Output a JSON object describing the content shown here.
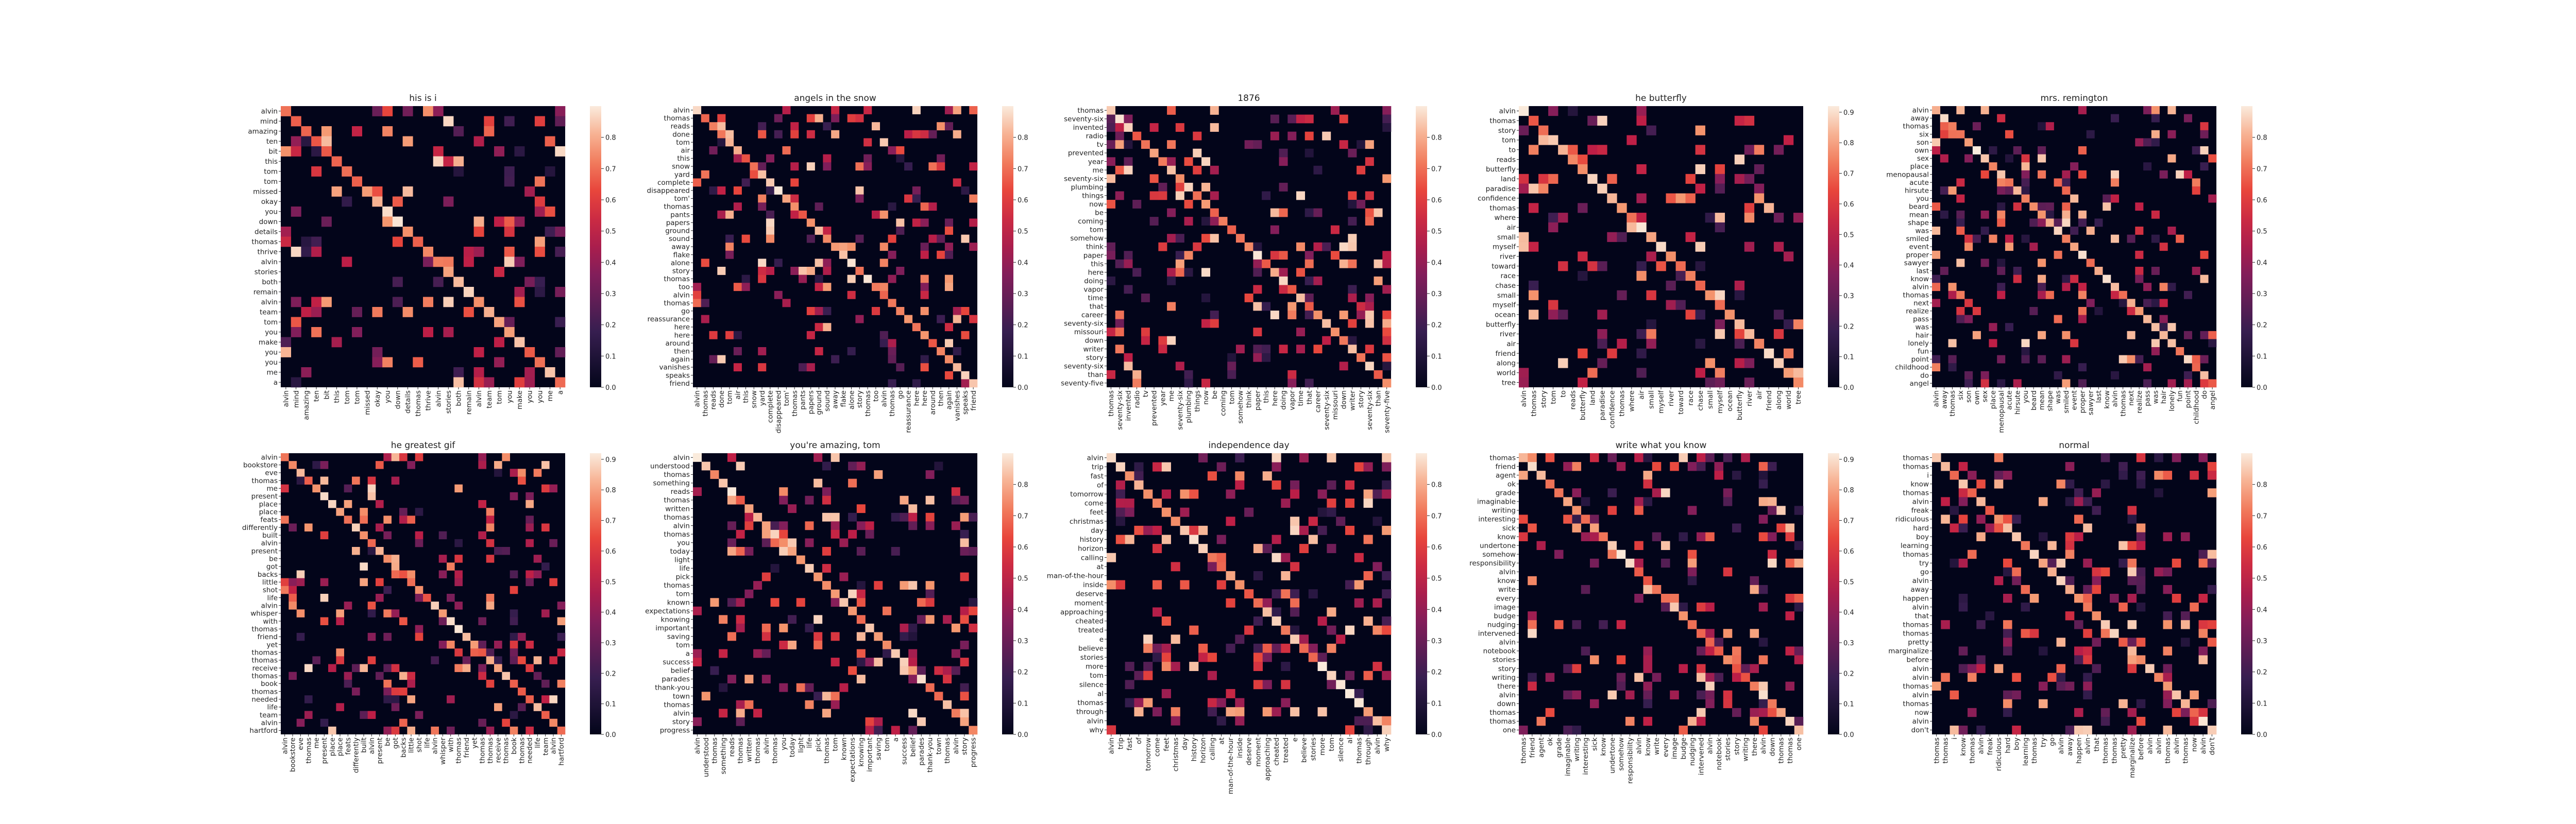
{
  "chart_data": [
    {
      "type": "heatmap",
      "title": "his is i",
      "labels": [
        "alvin",
        "mind",
        "amazing",
        "ten",
        "bit",
        "this",
        "tom",
        "tom",
        "missed",
        "okay",
        "you",
        "down",
        "details",
        "thomas",
        "thrive",
        "alvin",
        "stories",
        "both",
        "remain",
        "alvin",
        "team",
        "tom",
        "you",
        "make",
        "you",
        "you",
        "me",
        "a"
      ],
      "colorbar_ticks": [
        0.0,
        0.1,
        0.2,
        0.3,
        0.4,
        0.5,
        0.6,
        0.7,
        0.8
      ],
      "vmax": 0.9
    },
    {
      "type": "heatmap",
      "title": "angels in the snow",
      "labels": [
        "alvin",
        "thomas",
        "reads",
        "done",
        "tom",
        "air",
        "this",
        "snow",
        "yard",
        "complete",
        "disappeared",
        "tom'",
        "thomas",
        "pants",
        "papers",
        "ground",
        "sound",
        "away",
        "flake",
        "alone",
        "story",
        "thomas",
        "too",
        "alvin",
        "thomas",
        "go",
        "reassurance",
        "here",
        "here",
        "around",
        "then",
        "again",
        "vanishes",
        "speaks",
        "friend"
      ],
      "colorbar_ticks": [
        0.0,
        0.1,
        0.2,
        0.3,
        0.4,
        0.5,
        0.6,
        0.7,
        0.8
      ],
      "vmax": 0.9
    },
    {
      "type": "heatmap",
      "title": "1876",
      "labels": [
        "thomas",
        "seventy-six",
        "invented",
        "radio",
        "tv",
        "prevented",
        "year",
        "me",
        "seventy-six",
        "plumbing",
        "things",
        "now",
        "be",
        "coming",
        "tom",
        "somehow",
        "think",
        "paper",
        "this",
        "here",
        "doing",
        "vapor",
        "time",
        "that",
        "career",
        "seventy-six",
        "missouri",
        "down",
        "writer",
        "story",
        "seventy-six",
        "than",
        "seventy-five"
      ],
      "colorbar_ticks": [
        0.0,
        0.1,
        0.2,
        0.3,
        0.4,
        0.5,
        0.6,
        0.7,
        0.8
      ],
      "vmax": 0.9
    },
    {
      "type": "heatmap",
      "title": "he butterfly",
      "labels": [
        "alvin",
        "thomas",
        "story",
        "tom",
        "to",
        "reads",
        "butterfly",
        "land",
        "paradise",
        "confidence",
        "thomas",
        "where",
        "air",
        "small",
        "myself",
        "river",
        "toward",
        "race",
        "chase",
        "small",
        "myself",
        "ocean",
        "butterfly",
        "river",
        "air",
        "friend",
        "along",
        "world",
        "tree"
      ],
      "colorbar_ticks": [
        0.0,
        0.1,
        0.2,
        0.3,
        0.4,
        0.5,
        0.6,
        0.7,
        0.8,
        0.9
      ],
      "vmax": 0.92
    },
    {
      "type": "heatmap",
      "title": "mrs. remington",
      "labels": [
        "alvin",
        "away",
        "thomas",
        "six",
        "son",
        "own",
        "sex",
        "place",
        "menopausal",
        "acute",
        "hirsute",
        "you",
        "beard",
        "mean",
        "shape",
        "was",
        "smiled",
        "event",
        "proper",
        "sawyer",
        "last",
        "know",
        "alvin",
        "thomas",
        "next",
        "realize",
        "pass",
        "was",
        "hair",
        "lonely",
        "fun",
        "point",
        "childhood",
        "do",
        "angel"
      ],
      "colorbar_ticks": [
        0.0,
        0.1,
        0.2,
        0.3,
        0.4,
        0.5,
        0.6,
        0.7,
        0.8
      ],
      "vmax": 0.9
    },
    {
      "type": "heatmap",
      "title": "he greatest gif",
      "labels": [
        "alvin",
        "bookstore",
        "eve",
        "thomas",
        "me",
        "present",
        "place",
        "place",
        "feats",
        "differently",
        "built",
        "alvin",
        "present",
        "be",
        "got",
        "backs",
        "little",
        "shot",
        "life",
        "alvin",
        "whisper",
        "with",
        "thomas",
        "friend",
        "yet",
        "thomas",
        "thomas",
        "receive",
        "thomas",
        "book",
        "thomas",
        "needed",
        "life",
        "team",
        "alvin",
        "hartford"
      ],
      "colorbar_ticks": [
        0.0,
        0.1,
        0.2,
        0.3,
        0.4,
        0.5,
        0.6,
        0.7,
        0.8,
        0.9
      ],
      "vmax": 0.92
    },
    {
      "type": "heatmap",
      "title": "you're amazing, tom",
      "labels": [
        "alvin",
        "understood",
        "thomas",
        "something",
        "reads",
        "thomas",
        "written",
        "thomas",
        "alvin",
        "thomas",
        "you",
        "today",
        "light",
        "life",
        "pick",
        "thomas",
        "tom",
        "known",
        "expectations",
        "knowing",
        "important",
        "saving",
        "tom",
        "a",
        "success",
        "belief",
        "parades",
        "thank-you",
        "town",
        "thomas",
        "alvin",
        "story",
        "progress"
      ],
      "colorbar_ticks": [
        0.0,
        0.1,
        0.2,
        0.3,
        0.4,
        0.5,
        0.6,
        0.7,
        0.8
      ],
      "vmax": 0.9
    },
    {
      "type": "heatmap",
      "title": "independence day",
      "labels": [
        "alvin",
        "trip",
        "fast",
        "of",
        "tomorrow",
        "come",
        "feet",
        "christmas",
        "day",
        "history",
        "horizon",
        "calling",
        "at",
        "man-of-the-hour",
        "inside",
        "deserve",
        "moment",
        "approaching",
        "cheated",
        "treated",
        "e",
        "believe",
        "stories",
        "more",
        "tom",
        "silence",
        "al",
        "thomas",
        "through",
        "alvin",
        "why"
      ],
      "colorbar_ticks": [
        0.0,
        0.1,
        0.2,
        0.3,
        0.4,
        0.5,
        0.6,
        0.7,
        0.8
      ],
      "vmax": 0.9
    },
    {
      "type": "heatmap",
      "title": "write what you know",
      "labels": [
        "thomas",
        "friend",
        "agent",
        "ok",
        "grade",
        "imaginable",
        "writing",
        "interesting",
        "sick",
        "know",
        "undertone",
        "somehow",
        "responsibility",
        "alvin",
        "know",
        "write",
        "every",
        "image",
        "budge",
        "nudging",
        "intervened",
        "alvin",
        "notebook",
        "stories",
        "story",
        "writing",
        "there",
        "alvin",
        "down",
        "thomas",
        "thomas",
        "one"
      ],
      "colorbar_ticks": [
        0.0,
        0.1,
        0.2,
        0.3,
        0.4,
        0.5,
        0.6,
        0.7,
        0.8,
        0.9
      ],
      "vmax": 0.92
    },
    {
      "type": "heatmap",
      "title": "normal",
      "labels": [
        "thomas",
        "thomas",
        "i",
        "know",
        "thomas",
        "alvin",
        "freak",
        "ridiculous",
        "hard",
        "boy",
        "learning",
        "thomas",
        "try",
        "go",
        "alvin",
        "away",
        "happen",
        "alvin",
        "that",
        "thomas",
        "thomas",
        "pretty",
        "marginalize",
        "before",
        "alvin",
        "alvin",
        "thomas",
        "alvin",
        "thomas",
        "now",
        "alvin",
        "don't"
      ],
      "colorbar_ticks": [
        0.0,
        0.1,
        0.2,
        0.3,
        0.4,
        0.5,
        0.6,
        0.7,
        0.8
      ],
      "vmax": 0.9
    }
  ]
}
